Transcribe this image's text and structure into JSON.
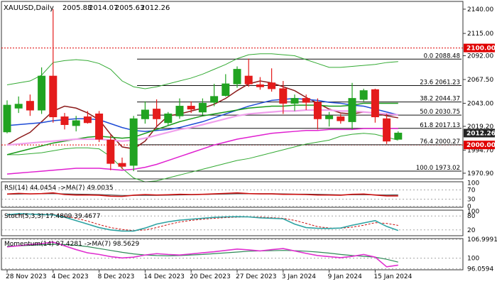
{
  "chart_data": {
    "type": "candlestick",
    "symbol_line": {
      "symbol": "XAUUSD,Daily",
      "open": "2005.88",
      "high": "2014.07",
      "low": "2005.63",
      "close": "2012.26"
    },
    "price_axis": {
      "ylim": [
        1965,
        2148
      ],
      "ticks": [
        2140.0,
        2115.0,
        2092.0,
        2067.5,
        2043.0,
        2019.2,
        1994.7,
        1970.9
      ],
      "tick_labels": [
        "2140.00",
        "2115.00",
        "2092.00",
        "2067.50",
        "2043.00",
        "2019.20",
        "1994.70",
        "1970.90"
      ],
      "current_price_label": "2012.26",
      "level_labels": [
        {
          "value": 2100.0,
          "text": "2100.00",
          "color": "#e00000"
        },
        {
          "value": 2000.0,
          "text": "2000.00",
          "color": "#e00000"
        }
      ]
    },
    "x_labels": [
      {
        "index": 0,
        "text": "28 Nov 2023"
      },
      {
        "index": 4,
        "text": "4 Dec 2023"
      },
      {
        "index": 8,
        "text": "8 Dec 2023"
      },
      {
        "index": 12,
        "text": "14 Dec 2023"
      },
      {
        "index": 16,
        "text": "20 Dec 2023"
      },
      {
        "index": 20,
        "text": "27 Dec 2023"
      },
      {
        "index": 24,
        "text": "3 Jan 2024"
      },
      {
        "index": 28,
        "text": "9 Jan 2024"
      },
      {
        "index": 32,
        "text": "15 Jan 2024"
      }
    ],
    "candles": [
      {
        "o": 2013.5,
        "h": 2046.0,
        "l": 2012.0,
        "c": 2041.0
      },
      {
        "o": 2038.0,
        "h": 2050.0,
        "l": 2033.0,
        "c": 2042.0
      },
      {
        "o": 2045.0,
        "h": 2052.0,
        "l": 2030.0,
        "c": 2036.0
      },
      {
        "o": 2036.0,
        "h": 2080.0,
        "l": 2032.0,
        "c": 2071.0
      },
      {
        "o": 2071.0,
        "h": 2140.0,
        "l": 2023.0,
        "c": 2029.0
      },
      {
        "o": 2029.0,
        "h": 2033.0,
        "l": 2016.0,
        "c": 2021.0
      },
      {
        "o": 2020.0,
        "h": 2030.0,
        "l": 2014.0,
        "c": 2025.0
      },
      {
        "o": 2029.0,
        "h": 2035.0,
        "l": 2022.0,
        "c": 2023.0
      },
      {
        "o": 2032.0,
        "h": 2035.0,
        "l": 2003.0,
        "c": 2006.0
      },
      {
        "o": 2005.0,
        "h": 2010.0,
        "l": 1974.0,
        "c": 1981.0
      },
      {
        "o": 1981.0,
        "h": 1987.0,
        "l": 1975.0,
        "c": 1978.0
      },
      {
        "o": 1979.0,
        "h": 2030.0,
        "l": 1973.0,
        "c": 2027.0
      },
      {
        "o": 2027.0,
        "h": 2045.0,
        "l": 2022.0,
        "c": 2036.0
      },
      {
        "o": 2037.0,
        "h": 2047.0,
        "l": 2019.0,
        "c": 2027.0
      },
      {
        "o": 2023.0,
        "h": 2034.0,
        "l": 2020.0,
        "c": 2032.0
      },
      {
        "o": 2030.0,
        "h": 2048.0,
        "l": 2027.0,
        "c": 2040.0
      },
      {
        "o": 2040.0,
        "h": 2045.0,
        "l": 2033.0,
        "c": 2037.0
      },
      {
        "o": 2034.0,
        "h": 2048.0,
        "l": 2031.0,
        "c": 2043.0
      },
      {
        "o": 2044.0,
        "h": 2063.0,
        "l": 2040.0,
        "c": 2050.0
      },
      {
        "o": 2051.0,
        "h": 2073.0,
        "l": 2050.0,
        "c": 2063.0
      },
      {
        "o": 2063.0,
        "h": 2081.0,
        "l": 2059.0,
        "c": 2078.0
      },
      {
        "o": 2071.0,
        "h": 2089.0,
        "l": 2060.0,
        "c": 2063.0
      },
      {
        "o": 2062.0,
        "h": 2070.0,
        "l": 2057.0,
        "c": 2060.0
      },
      {
        "o": 2064.0,
        "h": 2079.0,
        "l": 2055.0,
        "c": 2058.0
      },
      {
        "o": 2058.0,
        "h": 2066.0,
        "l": 2032.0,
        "c": 2043.0
      },
      {
        "o": 2043.0,
        "h": 2052.0,
        "l": 2035.0,
        "c": 2048.0
      },
      {
        "o": 2048.0,
        "h": 2052.0,
        "l": 2036.0,
        "c": 2044.0
      },
      {
        "o": 2044.0,
        "h": 2048.0,
        "l": 2016.0,
        "c": 2027.0
      },
      {
        "o": 2027.0,
        "h": 2034.0,
        "l": 2019.0,
        "c": 2030.0
      },
      {
        "o": 2029.0,
        "h": 2032.0,
        "l": 2022.0,
        "c": 2025.0
      },
      {
        "o": 2024.0,
        "h": 2064.0,
        "l": 2016.0,
        "c": 2048.0
      },
      {
        "o": 2047.0,
        "h": 2058.0,
        "l": 2045.0,
        "c": 2056.0
      },
      {
        "o": 2057.0,
        "h": 2058.0,
        "l": 2023.0,
        "c": 2029.0
      },
      {
        "o": 2027.0,
        "h": 2032.0,
        "l": 2001.0,
        "c": 2004.0
      },
      {
        "o": 2005.88,
        "h": 2014.07,
        "l": 2005.63,
        "c": 2012.26
      }
    ],
    "moving_averages": [
      {
        "color": "#8b1a1a",
        "values": [
          2000,
          2007,
          2013,
          2024,
          2035,
          2040,
          2038,
          2033,
          2026,
          2011,
          1998,
          1996,
          2004,
          2019,
          2030,
          2032,
          2035,
          2038,
          2042,
          2048,
          2056,
          2063,
          2066,
          2064,
          2060,
          2056,
          2049,
          2043,
          2037,
          2033,
          2032,
          2034,
          2033,
          2030,
          2028
        ]
      },
      {
        "color": "#1e4cd6",
        "values": [
          2020,
          2021,
          2022,
          2023,
          2025,
          2026,
          2027,
          2027,
          2026,
          2022,
          2018,
          2015,
          2014,
          2015,
          2016,
          2018,
          2021,
          2024,
          2028,
          2032,
          2036,
          2040,
          2043,
          2046,
          2047,
          2048,
          2047,
          2046,
          2044,
          2043,
          2041,
          2040,
          2037,
          2034,
          2031
        ]
      },
      {
        "color": "#1a9a1a",
        "values": [
          1990,
          1993,
          1996,
          1999,
          2002,
          2004,
          2006,
          2008,
          2009,
          2008,
          2007,
          2008,
          2012,
          2016,
          2020,
          2024,
          2027,
          2030,
          2032,
          2034,
          2036,
          2038,
          2039,
          2040,
          2040,
          2041,
          2041,
          2041,
          2040,
          2040,
          2041,
          2043,
          2043,
          2043,
          2043
        ]
      },
      {
        "color": "#f0a0ec",
        "values": [
          2000,
          2001,
          2002,
          2003,
          2004,
          2005,
          2006,
          2006,
          2006,
          2005,
          2004,
          2005,
          2007,
          2010,
          2013,
          2016,
          2018,
          2021,
          2024,
          2027,
          2030,
          2032,
          2033,
          2034,
          2035,
          2035,
          2036,
          2036,
          2036,
          2035,
          2035,
          2034,
          2033,
          2032,
          2031
        ]
      },
      {
        "color": "#e020d0",
        "values": [
          1970,
          1971,
          1972,
          1973,
          1974,
          1975,
          1976,
          1976,
          1976,
          1975,
          1974,
          1975,
          1977,
          1980,
          1984,
          1988,
          1992,
          1996,
          2000,
          2003,
          2006,
          2008,
          2010,
          2012,
          2013,
          2014,
          2015,
          2015,
          2016,
          2016,
          2016,
          2017,
          2017,
          2017,
          2017
        ]
      }
    ],
    "bollinger_bands": {
      "color": "#33aa33",
      "upper": [
        2062,
        2064,
        2066,
        2072,
        2085,
        2087,
        2088,
        2087,
        2084,
        2078,
        2066,
        2060,
        2058,
        2060,
        2063,
        2066,
        2069,
        2073,
        2078,
        2083,
        2089,
        2093,
        2094,
        2094,
        2093,
        2092,
        2088,
        2084,
        2080,
        2080,
        2081,
        2082,
        2083,
        2085,
        2086
      ],
      "lower": [
        1990,
        1990,
        1991,
        1992,
        1994,
        1996,
        1997,
        1997,
        1996,
        1988,
        1976,
        1966,
        1962,
        1963,
        1966,
        1969,
        1972,
        1975,
        1978,
        1981,
        1984,
        1986,
        1989,
        1992,
        1995,
        1998,
        2001,
        2003,
        2005,
        2009,
        2011,
        2012,
        2011,
        2008,
        2005
      ]
    },
    "fibonacci": {
      "x_start": 11.3,
      "levels": [
        {
          "value": 2088.48,
          "label": "0.0 2088.48"
        },
        {
          "value": 2061.23,
          "label": "23.6 2061.23"
        },
        {
          "value": 2044.37,
          "label": "38.2 2044.37"
        },
        {
          "value": 2030.75,
          "label": "50.0 2030.75"
        },
        {
          "value": 2017.13,
          "label": "61.8 2017.13"
        },
        {
          "value": 2000.27,
          "label": "76.4 2000.27"
        },
        {
          "value": 1973.02,
          "label": "100.0 1973.02"
        }
      ]
    },
    "rsi": {
      "label": "RSI(14) 44.0454  ->MA(7) 49.0035",
      "ylim": [
        -5,
        105
      ],
      "ticks": [
        70,
        30,
        0
      ],
      "tick_labels": [
        "70",
        "30",
        "0"
      ],
      "extra_ticks": [
        {
          "value": 100,
          "text": "100"
        }
      ],
      "rsi": [
        52,
        55,
        53,
        54,
        57,
        50,
        48,
        48,
        47,
        43,
        42,
        47,
        50,
        48,
        49,
        51,
        50,
        51,
        53,
        55,
        57,
        54,
        53,
        53,
        51,
        51,
        50,
        48,
        48,
        47,
        51,
        52,
        48,
        44,
        44
      ],
      "ma": [
        51,
        52,
        53,
        53,
        54,
        53,
        52,
        51,
        50,
        48,
        46,
        46,
        46,
        46,
        47,
        48,
        49,
        50,
        51,
        52,
        53,
        53,
        54,
        54,
        53,
        52,
        52,
        51,
        50,
        49,
        49,
        49,
        49,
        48,
        49
      ]
    },
    "stoch": {
      "label": "Stoch(5,3,3) 17.4809 39.4677",
      "ylim": [
        -5,
        105
      ],
      "ticks": [
        80,
        20
      ],
      "tick_labels": [
        "80",
        "20"
      ],
      "extra_ticks": [
        {
          "value": 100,
          "text": "100"
        }
      ],
      "k": [
        85,
        90,
        88,
        86,
        85,
        75,
        60,
        45,
        30,
        20,
        15,
        15,
        28,
        45,
        55,
        62,
        66,
        70,
        74,
        76,
        77,
        76,
        72,
        70,
        68,
        45,
        30,
        27,
        26,
        28,
        40,
        50,
        60,
        35,
        17.48
      ],
      "d": [
        84,
        86,
        88,
        88,
        87,
        80,
        70,
        58,
        43,
        30,
        22,
        17,
        20,
        30,
        43,
        54,
        61,
        66,
        70,
        73,
        75,
        76,
        75,
        73,
        70,
        61,
        48,
        34,
        28,
        27,
        32,
        40,
        51,
        48,
        39.47
      ]
    },
    "momentum": {
      "label": "Momentum(14) 97.4281  ->MA(7) 98.5629",
      "ylim": [
        95.7,
        107.3
      ],
      "ticks": [
        106.9991,
        100,
        96.0594
      ],
      "tick_labels": [
        "106.9991",
        "100",
        "96.0594"
      ],
      "mom": [
        104.2,
        104.6,
        105.1,
        105.4,
        106.0,
        104.6,
        103.2,
        102.0,
        101.4,
        100.6,
        100.1,
        100.4,
        101.2,
        101.7,
        101.4,
        101.2,
        101.6,
        102.0,
        102.4,
        102.9,
        103.4,
        103.1,
        102.7,
        103.2,
        103.6,
        102.7,
        101.8,
        101.0,
        100.6,
        100.2,
        100.7,
        101.4,
        100.4,
        96.8,
        97.43
      ],
      "ma": [
        104.5,
        104.6,
        104.8,
        105.0,
        105.2,
        105.1,
        104.8,
        104.3,
        103.6,
        102.9,
        102.2,
        101.6,
        101.2,
        101.0,
        100.9,
        101.0,
        101.2,
        101.4,
        101.7,
        102.0,
        102.3,
        102.6,
        102.7,
        102.8,
        102.9,
        102.8,
        102.6,
        102.3,
        101.9,
        101.4,
        101.0,
        100.7,
        100.4,
        99.6,
        98.56
      ]
    },
    "colors": {
      "bull": "#21a321",
      "bear": "#e41b1b",
      "indicator_line": "#cc1111",
      "indicator_ma": "#2ea3a3",
      "red_level": "#e00000",
      "price_box": "#222222"
    }
  }
}
